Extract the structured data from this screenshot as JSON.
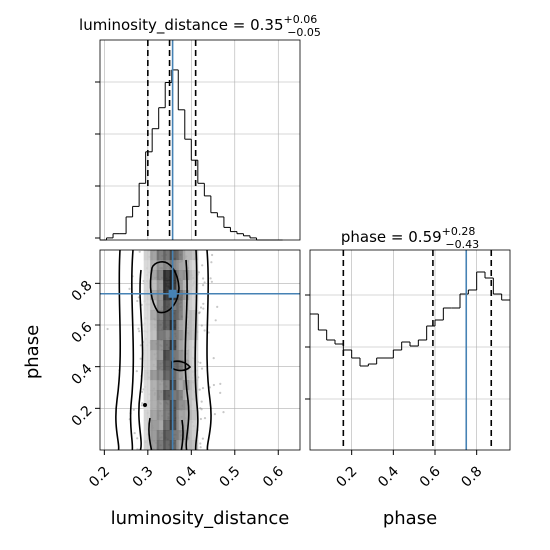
{
  "chart_data": [
    {
      "type": "histogram",
      "panel": "luminosity_distance-marginal",
      "title": {
        "prefix": "luminosity_distance = ",
        "value": "0.35",
        "plus": "+0.06",
        "minus": "−0.05"
      },
      "x": [
        0.19,
        0.205,
        0.22,
        0.235,
        0.25,
        0.265,
        0.28,
        0.295,
        0.31,
        0.325,
        0.34,
        0.355,
        0.37,
        0.385,
        0.4,
        0.415,
        0.43,
        0.445,
        0.46,
        0.475,
        0.49,
        0.505,
        0.52,
        0.535,
        0.55,
        0.565,
        0.58,
        0.595
      ],
      "values": [
        0.0,
        0.01,
        0.03,
        0.03,
        0.11,
        0.16,
        0.27,
        0.42,
        0.53,
        0.63,
        0.75,
        0.81,
        0.62,
        0.48,
        0.38,
        0.27,
        0.21,
        0.13,
        0.11,
        0.06,
        0.04,
        0.03,
        0.02,
        0.01,
        0.0,
        0.0,
        0.0,
        0.0
      ],
      "xlim": [
        0.19,
        0.65
      ],
      "quantiles": [
        0.3,
        0.35,
        0.41
      ],
      "truth": 0.357,
      "grid": true
    },
    {
      "type": "histogram",
      "panel": "phase-marginal",
      "title": {
        "prefix": "phase = ",
        "value": "0.59",
        "plus": "+0.28",
        "minus": "−0.43"
      },
      "x": [
        0.0,
        0.04,
        0.08,
        0.12,
        0.16,
        0.2,
        0.24,
        0.28,
        0.32,
        0.36,
        0.4,
        0.44,
        0.48,
        0.52,
        0.56,
        0.6,
        0.64,
        0.68,
        0.72,
        0.76,
        0.8,
        0.84,
        0.88,
        0.92,
        0.96
      ],
      "values": [
        0.68,
        0.6,
        0.55,
        0.53,
        0.5,
        0.46,
        0.42,
        0.43,
        0.46,
        0.46,
        0.5,
        0.54,
        0.52,
        0.55,
        0.62,
        0.65,
        0.71,
        0.71,
        0.78,
        0.8,
        0.89,
        0.86,
        0.78,
        0.75
      ],
      "xlim": [
        0.0,
        0.96
      ],
      "xticks": [
        "0.2",
        "0.4",
        "0.6",
        "0.8"
      ],
      "quantiles": [
        0.16,
        0.59,
        0.87
      ],
      "truth": 0.75,
      "grid": true
    },
    {
      "type": "heatmap",
      "panel": "2d-density",
      "xlabel": "luminosity_distance",
      "ylabel": "phase",
      "xlim": [
        0.19,
        0.65
      ],
      "ylim": [
        0.0,
        0.96
      ],
      "xticks": [
        "0.2",
        "0.3",
        "0.4",
        "0.5",
        "0.6"
      ],
      "yticks": [
        "0.2",
        "0.4",
        "0.6",
        "0.8"
      ],
      "truth": {
        "x": 0.357,
        "y": 0.75
      },
      "density_columns": [
        {
          "x": 0.295,
          "level": 0.2
        },
        {
          "x": 0.31,
          "level": 0.4
        },
        {
          "x": 0.325,
          "level": 0.55
        },
        {
          "x": 0.34,
          "level": 0.7
        },
        {
          "x": 0.355,
          "level": 0.75
        },
        {
          "x": 0.37,
          "level": 0.55
        },
        {
          "x": 0.385,
          "level": 0.4
        },
        {
          "x": 0.4,
          "level": 0.25
        }
      ],
      "grid": true
    }
  ],
  "colors": {
    "truth": "#4682b4",
    "hist": "#000000",
    "grid": "#b0b0b0",
    "scatter": "#9a9a9a",
    "contour": "#000000"
  }
}
